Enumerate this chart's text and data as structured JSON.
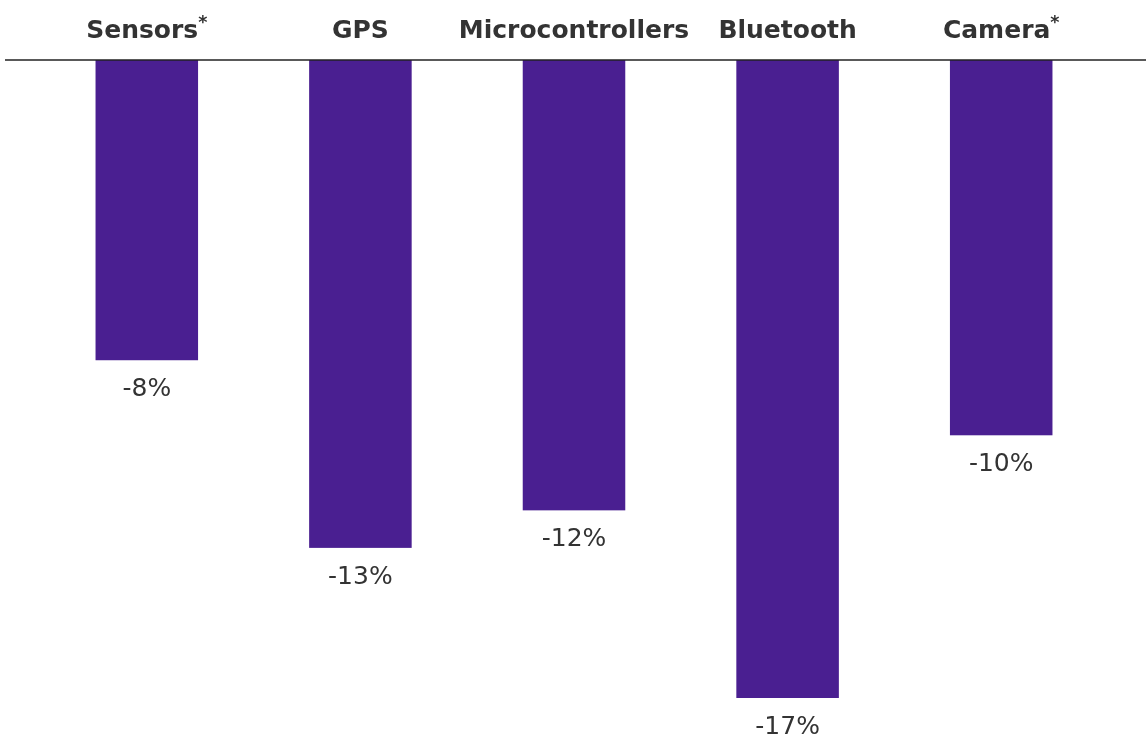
{
  "chart_data": {
    "type": "bar",
    "categories": [
      "Sensors$^{*}$",
      "GPS",
      "Microcontrollers",
      "Bluetooth",
      "Camera$^{*}$"
    ],
    "values": [
      -8,
      -13,
      -12,
      -17,
      -10
    ],
    "value_labels": [
      "-8%",
      "-13%",
      "-12%",
      "-17%",
      "-10%"
    ],
    "color": "#4a1f91"
  }
}
